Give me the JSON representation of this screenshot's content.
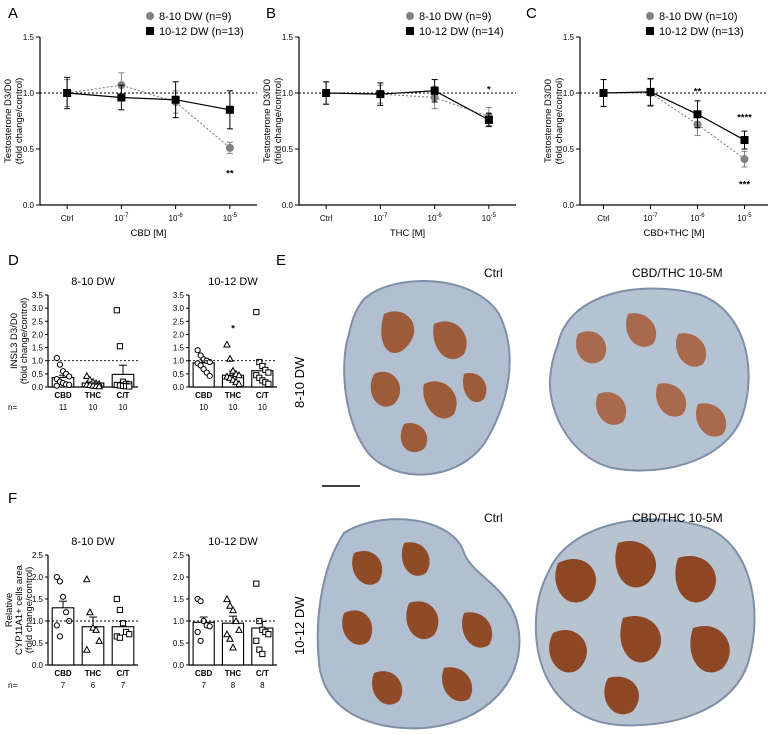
{
  "chart_data": [
    {
      "panel": "A",
      "type": "line",
      "x": [
        "Ctrl",
        "10-7",
        "10-6",
        "10-5"
      ],
      "xlabel": "CBD [M]",
      "ylabel": "Testosterone D3/D0 (fold change/control)",
      "ylim": [
        0,
        1.5
      ],
      "yticks": [
        "0.0",
        "0.5",
        "1.0",
        "1.5"
      ],
      "reference_line": 1.0,
      "series": [
        {
          "name": "8-10 DW (n=9)",
          "marker": "circle",
          "line": "dotted",
          "color": "#808080",
          "values": [
            1.0,
            1.07,
            0.92,
            0.51
          ],
          "err": [
            0.12,
            0.11,
            0.1,
            0.05
          ]
        },
        {
          "name": "10-12 DW (n=13)",
          "marker": "square",
          "line": "solid",
          "color": "#000000",
          "values": [
            1.0,
            0.96,
            0.94,
            0.85
          ],
          "err": [
            0.14,
            0.11,
            0.16,
            0.17
          ]
        }
      ],
      "annotations": [
        {
          "text": "**",
          "x": "10-5",
          "y": 0.3,
          "color": "#f08080"
        }
      ]
    },
    {
      "panel": "B",
      "type": "line",
      "x": [
        "Ctrl",
        "10-7",
        "10-6",
        "10-5"
      ],
      "xlabel": "THC [M]",
      "ylabel": "Testosterone D3/D0 (fold change/control)",
      "ylim": [
        0,
        1.5
      ],
      "yticks": [
        "0.0",
        "0.5",
        "1.0",
        "1.5"
      ],
      "reference_line": 1.0,
      "series": [
        {
          "name": "8-10 DW (n=9)",
          "marker": "circle",
          "line": "dotted",
          "color": "#808080",
          "values": [
            1.0,
            0.99,
            0.96,
            0.79
          ],
          "err": [
            0.1,
            0.08,
            0.1,
            0.08
          ]
        },
        {
          "name": "10-12 DW (n=14)",
          "marker": "square",
          "line": "solid",
          "color": "#000000",
          "values": [
            1.0,
            0.99,
            1.02,
            0.76
          ],
          "err": [
            0.1,
            0.1,
            0.1,
            0.06
          ]
        }
      ],
      "annotations": [
        {
          "text": "*",
          "x": "10-5",
          "y": 1.05,
          "color": "#e8102a"
        }
      ]
    },
    {
      "panel": "C",
      "type": "line",
      "x": [
        "Ctrl",
        "10-7",
        "10-6",
        "10-5"
      ],
      "xlabel": "CBD+THC [M]",
      "ylabel": "Testosterone D3/D0 (fold change/control)",
      "ylim": [
        0,
        1.5
      ],
      "yticks": [
        "0.0",
        "0.5",
        "1.0",
        "1.5"
      ],
      "reference_line": 1.0,
      "series": [
        {
          "name": "8-10 DW (n=10)",
          "marker": "circle",
          "line": "dotted",
          "color": "#808080",
          "values": [
            1.0,
            1.0,
            0.72,
            0.41
          ],
          "err": [
            0.12,
            0.12,
            0.1,
            0.07
          ]
        },
        {
          "name": "10-12 DW (n=13)",
          "marker": "square",
          "line": "solid",
          "color": "#000000",
          "values": [
            1.0,
            1.01,
            0.81,
            0.58
          ],
          "err": [
            0.12,
            0.12,
            0.12,
            0.08
          ]
        }
      ],
      "annotations": [
        {
          "text": "**",
          "x": "10-6",
          "y": 1.03,
          "color": "#e8102a"
        },
        {
          "text": "****",
          "x": "10-5",
          "y": 0.8,
          "color": "#e8102a"
        },
        {
          "text": "***",
          "x": "10-5",
          "y": 0.2,
          "color": "#f08080"
        }
      ]
    },
    {
      "panel": "D",
      "type": "bar",
      "title": "8-10 DW",
      "categories": [
        "CBD",
        "THC",
        "C/T"
      ],
      "n": [
        "11",
        "10",
        "10"
      ],
      "n_prefix": "n=",
      "ylabel": "INSL3 D3/D0 (fold change/control)",
      "ylim": [
        0,
        3.5
      ],
      "yticks": [
        "0.0",
        "0.5",
        "1.0",
        "1.5",
        "2.0",
        "2.5",
        "3.0",
        "3.5"
      ],
      "reference_line": 1.0,
      "values": [
        0.36,
        0.15,
        0.48
      ],
      "err": [
        0.09,
        0.04,
        0.35
      ],
      "markers": [
        "circle",
        "triangle",
        "square"
      ],
      "points": [
        [
          1.1,
          0.85,
          0.6,
          0.5,
          0.4,
          0.3,
          0.2,
          0.15,
          0.1,
          0.08,
          0.05
        ],
        [
          0.42,
          0.28,
          0.2,
          0.15,
          0.12,
          0.1,
          0.08,
          0.06,
          0.04,
          0.03
        ],
        [
          2.92,
          1.55,
          0.2,
          0.12,
          0.1,
          0.08,
          0.06,
          0.04,
          0.03,
          0.02
        ]
      ]
    },
    {
      "panel": "D",
      "type": "bar",
      "title": "10-12 DW",
      "categories": [
        "CBD",
        "THC",
        "C/T"
      ],
      "n": [
        "10",
        "10",
        "10"
      ],
      "n_prefix": "n=",
      "ylabel": "INSL3 D3/D0 (fold change/control)",
      "ylim": [
        0,
        3.5
      ],
      "yticks": [
        "0.0",
        "0.5",
        "1.0",
        "1.5",
        "2.0",
        "2.5",
        "3.0",
        "3.5"
      ],
      "reference_line": 1.0,
      "values": [
        0.92,
        0.45,
        0.62
      ],
      "err": [
        0.12,
        0.15,
        0.25
      ],
      "markers": [
        "circle",
        "triangle",
        "square"
      ],
      "points": [
        [
          1.4,
          1.2,
          1.05,
          1.0,
          0.95,
          0.9,
          0.82,
          0.68,
          0.55,
          0.42
        ],
        [
          1.62,
          1.08,
          0.62,
          0.5,
          0.45,
          0.4,
          0.35,
          0.28,
          0.2,
          0.12
        ],
        [
          2.85,
          0.95,
          0.8,
          0.65,
          0.55,
          0.45,
          0.35,
          0.25,
          0.18,
          0.12
        ]
      ],
      "annotations": [
        {
          "text": "*",
          "category": "THC",
          "y": 2.3,
          "color": "#e8102a"
        }
      ]
    },
    {
      "panel": "F",
      "type": "bar",
      "title": "8-10 DW",
      "categories": [
        "CBD",
        "THC",
        "C/T"
      ],
      "n": [
        "7",
        "6",
        "7"
      ],
      "n_prefix": "n=",
      "ylabel": "Relative CYP11A1+ cells area (fold change/control)",
      "ylim": [
        0,
        2.5
      ],
      "yticks": [
        "0.0",
        "0.5",
        "1.0",
        "1.5",
        "2.0",
        "2.5"
      ],
      "reference_line": 1.0,
      "values": [
        1.3,
        0.87,
        0.87
      ],
      "err": [
        0.15,
        0.22,
        0.12
      ],
      "markers": [
        "circle",
        "triangle",
        "square"
      ],
      "points": [
        [
          2.0,
          1.9,
          1.55,
          1.2,
          1.0,
          0.9,
          0.65
        ],
        [
          1.95,
          1.2,
          0.85,
          0.8,
          0.55,
          0.35
        ],
        [
          1.5,
          1.25,
          0.95,
          0.75,
          0.7,
          0.65,
          0.62
        ]
      ]
    },
    {
      "panel": "F",
      "type": "bar",
      "title": "10-12 DW",
      "categories": [
        "CBD",
        "THC",
        "C/T"
      ],
      "n": [
        "7",
        "8",
        "8"
      ],
      "n_prefix": "n=",
      "ylabel": "Relative CYP11A1+ cells area (fold change/control)",
      "ylim": [
        0,
        2.5
      ],
      "yticks": [
        "0.0",
        "0.5",
        "1.0",
        "1.5",
        "2.0",
        "2.5"
      ],
      "reference_line": 1.0,
      "values": [
        0.97,
        0.95,
        0.84
      ],
      "err": [
        0.12,
        0.16,
        0.15
      ],
      "markers": [
        "circle",
        "triangle",
        "square"
      ],
      "points": [
        [
          1.5,
          1.45,
          1.0,
          0.9,
          0.88,
          0.75,
          0.55
        ],
        [
          1.5,
          1.35,
          1.25,
          1.0,
          0.8,
          0.7,
          0.6,
          0.4
        ],
        [
          1.85,
          1.0,
          0.8,
          0.75,
          0.7,
          0.55,
          0.35,
          0.25
        ]
      ]
    }
  ],
  "figure": {
    "panel_letters": [
      "A",
      "B",
      "C",
      "D",
      "E",
      "F"
    ],
    "micrographs": {
      "panel": "E",
      "rows": [
        "8-10 DW",
        "10-12 DW"
      ],
      "images": [
        {
          "label": "Ctrl",
          "row": "8-10 DW",
          "stain": "#9a4a1e",
          "tissue": "#aebdd0"
        },
        {
          "label": "CBD/THC 10-5M",
          "row": "8-10 DW",
          "stain": "#a5532a",
          "tissue": "#b5c2d2"
        },
        {
          "label": "Ctrl",
          "row": "10-12 DW",
          "stain": "#8c3e14",
          "tissue": "#b1bfd1"
        },
        {
          "label": "CBD/THC 10-5M",
          "row": "10-12 DW",
          "stain": "#8a3a12",
          "tissue": "#b8c3d0"
        }
      ]
    },
    "colors": {
      "significant": "#e8102a",
      "significant_light": "#f08080",
      "grey_series": "#808080",
      "black_series": "#000000"
    }
  }
}
